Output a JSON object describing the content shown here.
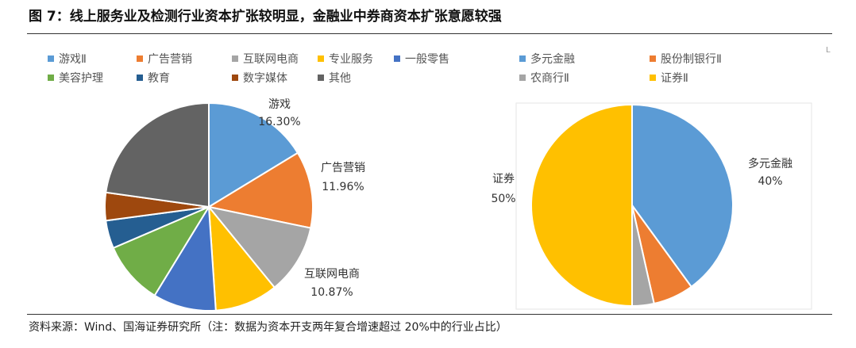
{
  "header": {
    "title": "图 7：线上服务业及检测行业资本扩张较明显，金融业中券商资本扩张意愿较强"
  },
  "footer": {
    "source": "资料来源：Wind、国海证券研究所（注：数据为资本开支两年复合增速超过 20%中的行业占比）"
  },
  "corner_mark": "L",
  "chart_data": [
    {
      "type": "pie",
      "title": "",
      "slices": [
        {
          "name": "游戏Ⅱ",
          "value": 16.3,
          "color": "#5B9BD5",
          "label_text": "16.30%",
          "label_name": "游戏"
        },
        {
          "name": "广告营销",
          "value": 11.96,
          "color": "#ED7D31",
          "label_text": "11.96%",
          "label_name": "广告营销"
        },
        {
          "name": "互联网电商",
          "value": 10.87,
          "color": "#A5A5A5",
          "label_text": "10.87%",
          "label_name": "互联网电商"
        },
        {
          "name": "专业服务",
          "value": 9.8,
          "color": "#FFC000",
          "label_text": "",
          "label_name": ""
        },
        {
          "name": "一般零售",
          "value": 9.8,
          "color": "#4472C4",
          "label_text": "",
          "label_name": ""
        },
        {
          "name": "美容护理",
          "value": 9.8,
          "color": "#70AD47",
          "label_text": "",
          "label_name": ""
        },
        {
          "name": "教育",
          "value": 4.35,
          "color": "#255E91",
          "label_text": "",
          "label_name": ""
        },
        {
          "name": "数字媒体",
          "value": 4.35,
          "color": "#9E480E",
          "label_text": "",
          "label_name": ""
        },
        {
          "name": "其他",
          "value": 22.77,
          "color": "#636363",
          "label_text": "",
          "label_name": ""
        }
      ],
      "legend_position": "top"
    },
    {
      "type": "pie",
      "title": "",
      "slices": [
        {
          "name": "多元金融",
          "value": 40,
          "color": "#5B9BD5",
          "label_text": "40%",
          "label_name": "多元金融"
        },
        {
          "name": "股份制银行Ⅱ",
          "value": 6.5,
          "color": "#ED7D31",
          "label_text": "",
          "label_name": ""
        },
        {
          "name": "农商行Ⅱ",
          "value": 3.5,
          "color": "#A5A5A5",
          "label_text": "",
          "label_name": ""
        },
        {
          "name": "证券Ⅱ",
          "value": 50,
          "color": "#FFC000",
          "label_text": "50%",
          "label_name": "证券"
        }
      ],
      "legend_position": "top"
    }
  ]
}
